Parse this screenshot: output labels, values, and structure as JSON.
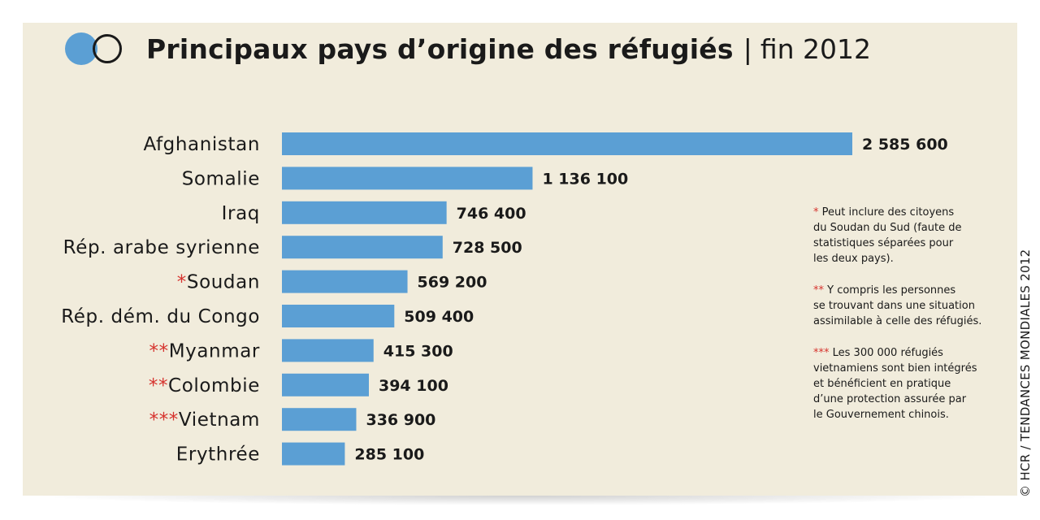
{
  "header": {
    "title": "Principaux pays d’origine des réfugiés",
    "separator": "|",
    "subtitle": "fin 2012"
  },
  "colors": {
    "bar": "#5b9fd4",
    "panel": "#f1ecdc",
    "stars": "#d6332e"
  },
  "chart_data": {
    "type": "bar",
    "orientation": "horizontal",
    "title": "Principaux pays d’origine des réfugiés | fin 2012",
    "xlim": [
      0,
      2585600
    ],
    "grid": false,
    "legend": "none",
    "categories": [
      {
        "stars": "",
        "name": "Afghanistan"
      },
      {
        "stars": "",
        "name": "Somalie"
      },
      {
        "stars": "",
        "name": "Iraq"
      },
      {
        "stars": "",
        "name": "Rép. arabe syrienne"
      },
      {
        "stars": "*",
        "name": "Soudan"
      },
      {
        "stars": "",
        "name": "Rép. dém. du Congo"
      },
      {
        "stars": "**",
        "name": "Myanmar"
      },
      {
        "stars": "**",
        "name": "Colombie"
      },
      {
        "stars": "***",
        "name": "Vietnam"
      },
      {
        "stars": "",
        "name": "Erythrée"
      }
    ],
    "values": [
      2585600,
      1136100,
      746400,
      728500,
      569200,
      509400,
      415300,
      394100,
      336900,
      285100
    ],
    "value_labels": [
      "2 585 600",
      "1 136 100",
      "746 400",
      "728 500",
      "569 200",
      "509 400",
      "415 300",
      "394 100",
      "336 900",
      "285 100"
    ]
  },
  "notes": [
    {
      "stars": "*",
      "text": " Peut inclure des citoyens\ndu Soudan du Sud (faute de\nstatistiques séparées pour\nles deux pays)."
    },
    {
      "stars": "**",
      "text": " Y compris les personnes\nse trouvant dans une situation\nassimilable à celle des réfugiés."
    },
    {
      "stars": "***",
      "text": " Les 300 000 réfugiés\nvietnamiens sont bien intégrés\net bénéficient en pratique\nd’une protection assurée par\nle Gouvernement chinois."
    }
  ],
  "credit": "© HCR / TENDANCES MONDIALES 2012"
}
